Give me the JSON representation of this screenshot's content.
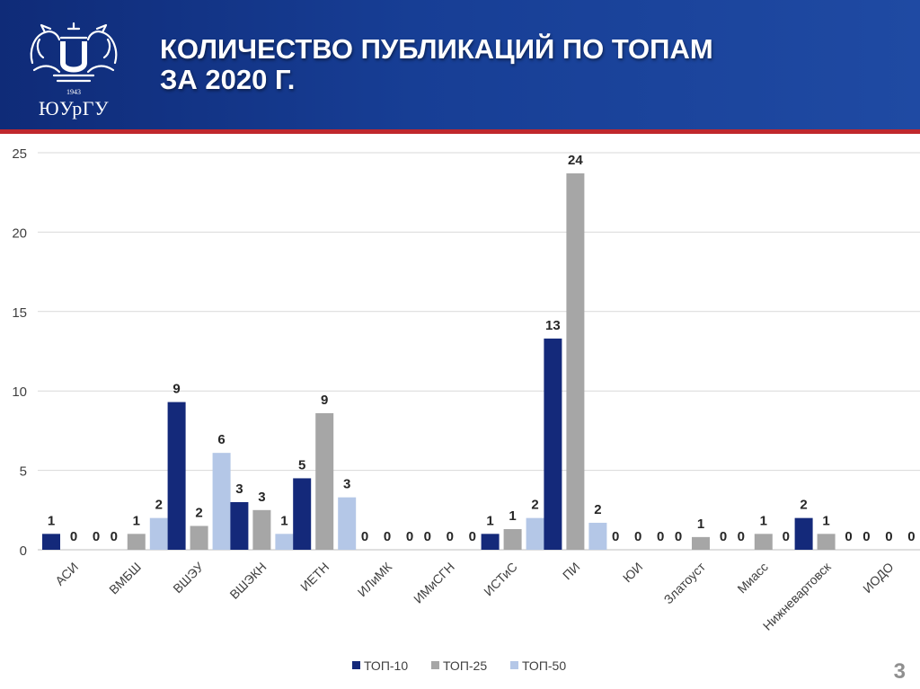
{
  "header": {
    "title_line1": "КОЛИЧЕСТВО ПУБЛИКАЦИЙ ПО ТОПАМ",
    "title_line2": "ЗА 2020 Г.",
    "logo_year": "1943",
    "logo_text": "ЮУрГУ",
    "background_color": "#173e95",
    "stripe_color": "#c0282d"
  },
  "page_number": "3",
  "chart_data": {
    "type": "bar",
    "title": "",
    "xlabel": "",
    "ylabel": "",
    "ylim": [
      0,
      25
    ],
    "yticks": [
      0,
      5,
      10,
      15,
      20,
      25
    ],
    "grid": true,
    "legend_position": "bottom",
    "categories": [
      "АСИ",
      "ВМБШ",
      "ВШЭУ",
      "ВШЭКН",
      "ИЕТН",
      "ИЛиМК",
      "ИМиСГН",
      "ИСТиС",
      "ПИ",
      "ЮИ",
      "Златоуст",
      "Миасс",
      "Нижневартовск",
      "ИОДО"
    ],
    "series": [
      {
        "name": "ТОП-10",
        "color": "#14297a",
        "values": [
          1,
          0,
          9.3,
          3,
          4.5,
          0,
          0,
          1,
          13.3,
          0,
          0,
          0,
          2,
          0
        ],
        "labels": [
          "1",
          "0",
          "9",
          "3",
          "5",
          "0",
          "0",
          "1",
          "13",
          "0",
          "0",
          "0",
          "2",
          "0"
        ]
      },
      {
        "name": "ТОП-25",
        "color": "#a6a6a6",
        "values": [
          0,
          1,
          1.5,
          2.5,
          8.6,
          0,
          0,
          1.3,
          23.7,
          0,
          0.8,
          1,
          1,
          0
        ],
        "labels": [
          "0",
          "1",
          "2",
          "3",
          "9",
          "0",
          "0",
          "1",
          "24",
          "0",
          "1",
          "1",
          "1",
          "0"
        ]
      },
      {
        "name": "ТОП-50",
        "color": "#b4c7e7",
        "values": [
          0,
          2,
          6.1,
          1,
          3.3,
          0,
          0,
          2,
          1.7,
          0,
          0,
          0,
          0,
          0
        ],
        "labels": [
          "0",
          "2",
          "6",
          "1",
          "3",
          "0",
          "0",
          "2",
          "2",
          "0",
          "0",
          "0",
          "0",
          "0"
        ]
      }
    ]
  }
}
